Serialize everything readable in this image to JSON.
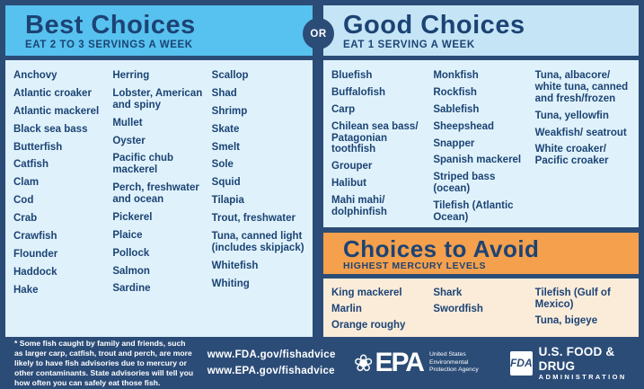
{
  "best": {
    "title": "Best Choices",
    "subtitle": "EAT 2 TO 3 SERVINGS A WEEK",
    "columns": [
      [
        "Anchovy",
        "Atlantic croaker",
        "Atlantic mackerel",
        "Black sea bass",
        "Butterfish",
        "Catfish",
        "Clam",
        "Cod",
        "Crab",
        "Crawfish",
        "Flounder",
        "Haddock",
        "Hake"
      ],
      [
        "Herring",
        "Lobster, American and spiny",
        "Mullet",
        "Oyster",
        "Pacific chub mackerel",
        "Perch, freshwater and ocean",
        "Pickerel",
        "Plaice",
        "Pollock",
        "Salmon",
        "Sardine"
      ],
      [
        "Scallop",
        "Shad",
        "Shrimp",
        "Skate",
        "Smelt",
        "Sole",
        "Squid",
        "Tilapia",
        "Trout, freshwater",
        "Tuna, canned light (includes skipjack)",
        "Whitefish",
        "Whiting"
      ]
    ]
  },
  "or_label": "OR",
  "good": {
    "title": "Good Choices",
    "subtitle": "EAT 1 SERVING A WEEK",
    "columns": [
      [
        "Bluefish",
        "Buffalofish",
        "Carp",
        "Chilean sea bass/ Patagonian toothfish",
        "Grouper",
        "Halibut",
        "Mahi mahi/ dolphinfish"
      ],
      [
        "Monkfish",
        "Rockfish",
        "Sablefish",
        "Sheepshead",
        "Snapper",
        "Spanish mackerel",
        "Striped bass (ocean)",
        "Tilefish (Atlantic Ocean)"
      ],
      [
        "Tuna, albacore/ white tuna, canned and fresh/frozen",
        "Tuna, yellowfin",
        "Weakfish/ seatrout",
        "White croaker/ Pacific croaker"
      ]
    ]
  },
  "avoid": {
    "title": "Choices to Avoid",
    "subtitle": "HIGHEST MERCURY LEVELS",
    "columns": [
      [
        "King mackerel",
        "Marlin",
        "Orange roughy"
      ],
      [
        "Shark",
        "Swordfish"
      ],
      [
        "Tilefish (Gulf of Mexico)",
        "Tuna, bigeye"
      ]
    ]
  },
  "footer": {
    "footnote": "* Some fish caught by family and friends, such as larger carp, catfish, trout and perch, are more likely to have fish advisories due to mercury or other contaminants. State advisories will tell you how often you can safely eat those fish.",
    "links": [
      "www.FDA.gov/fishadvice",
      "www.EPA.gov/fishadvice"
    ],
    "epa_logo": {
      "flower": "❀",
      "word": "EPA",
      "tagline": "United States Environmental Protection Agency"
    },
    "fda_logo": {
      "monogram": "FDA",
      "line1": "U.S. FOOD & DRUG",
      "line2": "ADMINISTRATION"
    }
  },
  "colors": {
    "frame_navy": "#2B4C77",
    "text_navy": "#1C4374",
    "best_header_blue": "#57C2EF",
    "good_header_blue": "#C5E5F6",
    "list_light_blue": "#DFF2FB",
    "avoid_orange": "#F4A04C",
    "avoid_peach": "#FBECDA",
    "white": "#FFFFFF"
  }
}
